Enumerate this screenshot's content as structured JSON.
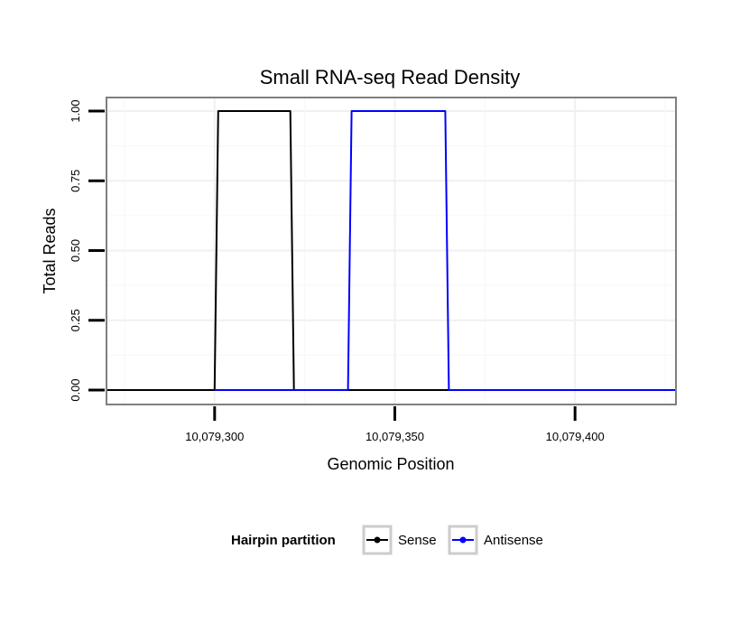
{
  "chart_data": {
    "type": "line",
    "title": "Small RNA-seq Read Density",
    "xlabel": "Genomic Position",
    "ylabel": "Total Reads",
    "xlim": [
      10079270,
      10079428
    ],
    "ylim": [
      0,
      1
    ],
    "x_ticks": [
      10079300,
      10079350,
      10079400
    ],
    "x_tick_labels": [
      "10,079,300",
      "10,079,350",
      "10,079,400"
    ],
    "y_ticks": [
      0,
      0.25,
      0.5,
      0.75,
      1
    ],
    "y_tick_labels": [
      "0.00",
      "0.25",
      "0.50",
      "0.75",
      "1.00"
    ],
    "grid": true,
    "legend": {
      "title": "Hairpin partition",
      "position": "bottom",
      "entries": [
        "Sense",
        "Antisense"
      ]
    },
    "series": [
      {
        "name": "Sense",
        "color": "#000000",
        "x": [
          10079270,
          10079300,
          10079301,
          10079321,
          10079322,
          10079428
        ],
        "y": [
          0,
          0,
          1,
          1,
          0,
          0
        ]
      },
      {
        "name": "Antisense",
        "color": "#0000ff",
        "x": [
          10079300,
          10079337,
          10079338,
          10079364,
          10079365,
          10079428
        ],
        "y": [
          0,
          0,
          1,
          1,
          0,
          0
        ]
      }
    ]
  }
}
